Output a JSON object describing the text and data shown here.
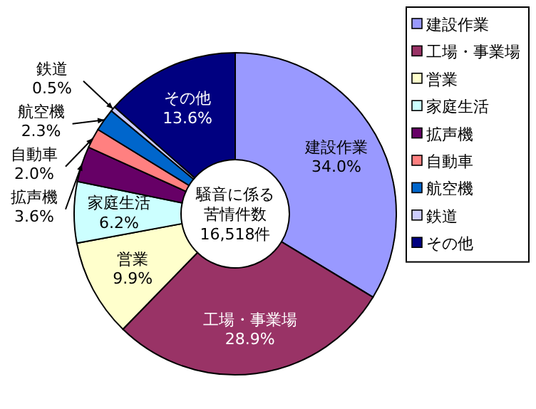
{
  "chart_data": {
    "type": "donut",
    "categories": [
      "建設作業",
      "工場・事業場",
      "営業",
      "家庭生活",
      "拡声機",
      "自動車",
      "航空機",
      "鉄道",
      "その他"
    ],
    "values": [
      34.0,
      28.9,
      9.9,
      6.2,
      3.6,
      2.0,
      2.3,
      0.5,
      13.6
    ],
    "colors": [
      "#9999ff",
      "#993366",
      "#ffffcc",
      "#ccffff",
      "#660066",
      "#ff8080",
      "#0066cc",
      "#ccccff",
      "#000080"
    ],
    "value_labels": [
      "34.0%",
      "28.9%",
      "9.9%",
      "6.2%",
      "3.6%",
      "2.0%",
      "2.3%",
      "0.5%",
      "13.6%"
    ],
    "legend": "right",
    "annotations": [
      "騒音に係る",
      "苦情件数",
      "16,518件"
    ]
  }
}
